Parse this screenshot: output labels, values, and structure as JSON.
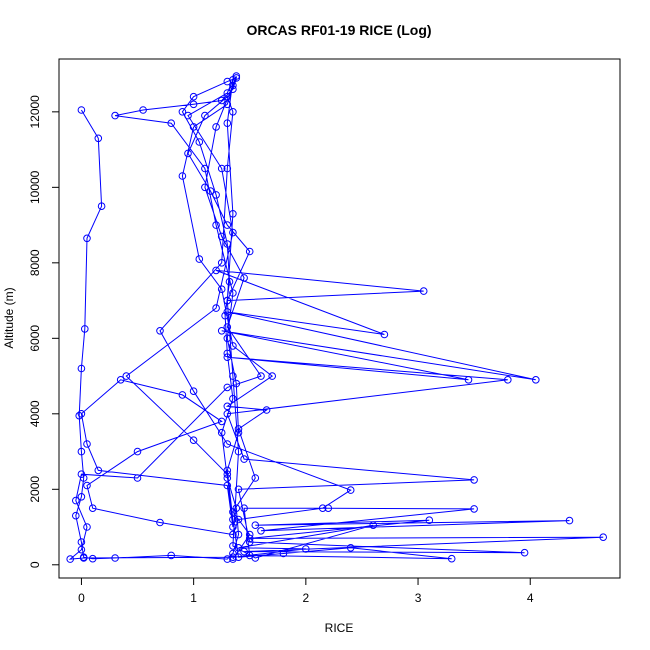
{
  "chart_data": {
    "type": "line",
    "title": "ORCAS RF01-19 RICE (Log)",
    "xlabel": "RICE",
    "ylabel": "Altitude (m)",
    "xlim": [
      -0.2,
      4.8
    ],
    "ylim": [
      -350,
      13400
    ],
    "xticks": [
      0,
      1,
      2,
      3,
      4
    ],
    "yticks": [
      0,
      2000,
      4000,
      6000,
      8000,
      10000,
      12000
    ],
    "grid": false,
    "legend": "none",
    "series_color": "#0000ff",
    "marker": "open-circle",
    "series": [
      {
        "values": [
          [
            0.0,
            12050
          ],
          [
            0.15,
            11300
          ],
          [
            0.18,
            9500
          ],
          [
            0.05,
            8650
          ],
          [
            0.03,
            6250
          ],
          [
            0.0,
            5200
          ],
          [
            -0.02,
            3950
          ],
          [
            0.0,
            3000
          ],
          [
            0.02,
            2300
          ],
          [
            0.0,
            1800
          ],
          [
            -0.05,
            1300
          ],
          [
            0.0,
            600
          ],
          [
            0.02,
            200
          ],
          [
            0.1,
            160
          ],
          [
            0.3,
            180
          ],
          [
            0.8,
            250
          ],
          [
            1.3,
            150
          ],
          [
            1.35,
            300
          ],
          [
            1.4,
            800
          ],
          [
            1.38,
            1500
          ],
          [
            1.3,
            2300
          ],
          [
            1.25,
            3500
          ],
          [
            1.35,
            4400
          ],
          [
            1.3,
            5600
          ],
          [
            1.28,
            6600
          ],
          [
            1.32,
            7500
          ],
          [
            1.3,
            8500
          ],
          [
            1.2,
            9800
          ],
          [
            1.05,
            11200
          ],
          [
            0.9,
            12000
          ],
          [
            1.0,
            12400
          ],
          [
            1.3,
            12800
          ],
          [
            1.38,
            12900
          ],
          [
            1.35,
            12600
          ],
          [
            1.25,
            12300
          ],
          [
            1.0,
            12200
          ],
          [
            0.55,
            12050
          ],
          [
            0.3,
            11900
          ],
          [
            0.8,
            11700
          ],
          [
            1.1,
            10500
          ],
          [
            1.2,
            9000
          ],
          [
            1.35,
            7200
          ],
          [
            1.3,
            6000
          ],
          [
            1.38,
            4800
          ],
          [
            1.4,
            3500
          ],
          [
            1.3,
            2500
          ],
          [
            1.35,
            1200
          ],
          [
            1.4,
            200
          ],
          [
            1.8,
            300
          ],
          [
            2.4,
            450
          ],
          [
            3.3,
            160
          ],
          [
            1.5,
            250
          ],
          [
            1.45,
            1500
          ],
          [
            2.2,
            1500
          ],
          [
            3.5,
            1480
          ],
          [
            1.6,
            900
          ],
          [
            4.35,
            1170
          ],
          [
            1.55,
            1050
          ],
          [
            3.1,
            1180
          ],
          [
            1.5,
            700
          ],
          [
            4.65,
            730
          ],
          [
            1.45,
            350
          ],
          [
            3.95,
            320
          ],
          [
            1.5,
            600
          ],
          [
            1.4,
            2000
          ],
          [
            3.5,
            2250
          ],
          [
            1.45,
            2800
          ],
          [
            1.3,
            4000
          ],
          [
            3.8,
            4900
          ],
          [
            1.3,
            5500
          ],
          [
            3.45,
            4900
          ],
          [
            1.25,
            6200
          ],
          [
            4.05,
            4900
          ],
          [
            1.3,
            6700
          ],
          [
            2.7,
            6100
          ],
          [
            1.2,
            7800
          ],
          [
            3.05,
            7250
          ],
          [
            1.3,
            7000
          ],
          [
            1.5,
            8300
          ],
          [
            1.3,
            9000
          ],
          [
            1.15,
            9900
          ],
          [
            0.95,
            10900
          ],
          [
            1.1,
            11900
          ],
          [
            1.3,
            12400
          ],
          [
            1.35,
            12000
          ],
          [
            1.3,
            10500
          ],
          [
            1.25,
            8000
          ],
          [
            0.7,
            6200
          ],
          [
            1.0,
            4600
          ],
          [
            1.3,
            3200
          ],
          [
            2.4,
            1980
          ],
          [
            2.15,
            1500
          ],
          [
            1.4,
            1200
          ],
          [
            1.35,
            800
          ],
          [
            0.7,
            1120
          ],
          [
            0.1,
            1500
          ],
          [
            0.05,
            2100
          ],
          [
            0.5,
            3000
          ],
          [
            1.25,
            3800
          ],
          [
            0.9,
            4500
          ],
          [
            0.35,
            4900
          ],
          [
            0.0,
            4000
          ],
          [
            0.05,
            3200
          ],
          [
            0.15,
            2500
          ],
          [
            1.3,
            2100
          ],
          [
            1.35,
            1000
          ],
          [
            1.3,
            2400
          ],
          [
            1.0,
            3300
          ],
          [
            0.4,
            5000
          ],
          [
            1.2,
            6800
          ],
          [
            1.35,
            8800
          ],
          [
            1.25,
            10500
          ],
          [
            0.95,
            11900
          ],
          [
            1.3,
            12500
          ],
          [
            1.35,
            12850
          ],
          [
            1.3,
            11700
          ],
          [
            1.35,
            9300
          ],
          [
            1.3,
            7000
          ],
          [
            1.35,
            5000
          ],
          [
            1.4,
            3000
          ],
          [
            1.35,
            500
          ],
          [
            1.55,
            180
          ],
          [
            2.6,
            1050
          ],
          [
            1.4,
            450
          ],
          [
            2.0,
            420
          ],
          [
            1.35,
            200
          ],
          [
            0.02,
            180
          ],
          [
            -0.1,
            150
          ],
          [
            0.0,
            400
          ],
          [
            0.05,
            1000
          ],
          [
            -0.05,
            1700
          ],
          [
            0.0,
            2400
          ],
          [
            0.5,
            2300
          ],
          [
            1.3,
            4700
          ],
          [
            1.6,
            5000
          ],
          [
            1.3,
            6300
          ],
          [
            1.45,
            7600
          ],
          [
            1.25,
            8700
          ],
          [
            1.1,
            10000
          ],
          [
            1.2,
            11600
          ],
          [
            1.35,
            12700
          ],
          [
            1.38,
            12950
          ],
          [
            1.3,
            12200
          ],
          [
            1.0,
            11600
          ],
          [
            0.9,
            10300
          ],
          [
            1.05,
            8100
          ],
          [
            1.25,
            7300
          ],
          [
            1.35,
            5800
          ],
          [
            1.7,
            5000
          ],
          [
            1.3,
            4200
          ],
          [
            1.65,
            4100
          ],
          [
            1.4,
            3600
          ],
          [
            1.55,
            2300
          ],
          [
            1.35,
            1400
          ],
          [
            1.5,
            800
          ],
          [
            1.35,
            150
          ]
        ]
      }
    ]
  }
}
